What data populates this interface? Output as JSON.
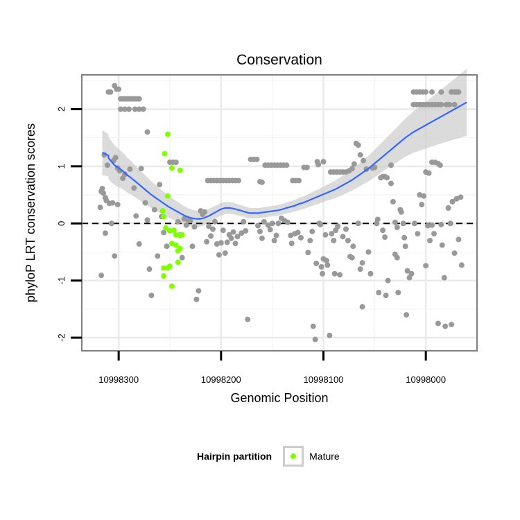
{
  "chart_data": {
    "type": "scatter",
    "title": "Conservation",
    "xlabel": "Genomic Position",
    "ylabel": "phyloP LRT conservation scores",
    "x_reversed": true,
    "xlim": [
      10998336,
      10997950
    ],
    "ylim": [
      -2.23,
      2.6
    ],
    "xticks": [
      10998300,
      10998200,
      10998100,
      10998000
    ],
    "xtick_labels": [
      "10998300",
      "10998200",
      "10998100",
      "10998000"
    ],
    "yticks": [
      2,
      1,
      0,
      -1,
      -2
    ],
    "ytick_labels": [
      "2",
      "1",
      "0",
      "-1",
      "-2"
    ],
    "grid": true,
    "hline": 0,
    "colors": {
      "background_point": "#999999",
      "mature": "#7fff00",
      "smooth": "#3366ff",
      "ribbon": "#cccccc"
    },
    "legend": {
      "title": "Hairpin partition",
      "entries": [
        "Mature"
      ],
      "position": "bottom"
    },
    "series": [
      {
        "x": [
          10998316,
          10998310,
          10998310,
          10998308,
          10998306,
          10998304,
          10998300,
          10998297,
          10998294,
          10998292,
          10998288,
          10998284,
          10998280,
          10998276,
          10998272,
          10998268,
          10998264,
          10998260,
          10998256,
          10998252,
          10998248,
          10998244,
          10998240,
          10998236,
          10998232,
          10998228,
          10998224,
          10998220,
          10998216,
          10998212,
          10998208,
          10998204,
          10998200,
          10998196,
          10998192,
          10998188,
          10998184,
          10998180,
          10998176,
          10998172,
          10998168,
          10998164,
          10998160,
          10998156,
          10998152,
          10998148,
          10998144,
          10998140,
          10998136,
          10998132,
          10998128,
          10998124,
          10998120,
          10998116,
          10998112,
          10998108,
          10998104,
          10998100,
          10998096,
          10998092,
          10998088,
          10998084,
          10998080,
          10998076,
          10998072,
          10998068,
          10998064,
          10998060,
          10998056,
          10998052,
          10998048,
          10998044,
          10998040,
          10998036,
          10998032,
          10998028,
          10998024,
          10998020,
          10998016,
          10998012,
          10998008,
          10998004,
          10998000,
          10997996,
          10997992,
          10997988,
          10997984,
          10997980,
          10997976,
          10997972,
          10997968,
          10997964,
          10997960
        ],
        "y": [
          1.24,
          1.19,
          1.15,
          1.1,
          1.06,
          1.02,
          0.97,
          0.93,
          0.89,
          0.85,
          0.8,
          0.74,
          0.68,
          0.62,
          0.56,
          0.5,
          0.45,
          0.4,
          0.35,
          0.3,
          0.26,
          0.22,
          0.18,
          0.14,
          0.11,
          0.09,
          0.08,
          0.08,
          0.1,
          0.13,
          0.17,
          0.21,
          0.25,
          0.27,
          0.27,
          0.26,
          0.24,
          0.22,
          0.2,
          0.18,
          0.18,
          0.18,
          0.19,
          0.2,
          0.21,
          0.22,
          0.23,
          0.25,
          0.27,
          0.29,
          0.31,
          0.34,
          0.36,
          0.39,
          0.42,
          0.45,
          0.48,
          0.51,
          0.54,
          0.57,
          0.6,
          0.64,
          0.68,
          0.72,
          0.76,
          0.81,
          0.86,
          0.91,
          0.96,
          1.02,
          1.08,
          1.14,
          1.2,
          1.26,
          1.32,
          1.38,
          1.44,
          1.5,
          1.55,
          1.6,
          1.64,
          1.68,
          1.72,
          1.76,
          1.8,
          1.84,
          1.88,
          1.92,
          1.96,
          2.0,
          2.04,
          2.08,
          2.12
        ],
        "name": ""
      }
    ]
  },
  "points_gray": [
    [
      10998317,
      -0.91
    ],
    [
      10998318,
      0.28
    ],
    [
      10998317,
      0.56
    ],
    [
      10998316,
      0.61
    ],
    [
      10998315,
      0.53
    ],
    [
      10998314,
      1.2
    ],
    [
      10998313,
      0.45
    ],
    [
      10998312,
      0.4
    ],
    [
      10998313,
      -0.17
    ],
    [
      10998310,
      2.3
    ],
    [
      10998308,
      2.3
    ],
    [
      10998311,
      1.02
    ],
    [
      10998309,
      0.35
    ],
    [
      10998307,
      0.0
    ],
    [
      10998306,
      0.36
    ],
    [
      10998305,
      1.1
    ],
    [
      10998304,
      2.41
    ],
    [
      10998302,
      2.35
    ],
    [
      10998300,
      2.35
    ],
    [
      10998303,
      1.15
    ],
    [
      10998304,
      -0.57
    ],
    [
      10998301,
      0.97
    ],
    [
      10998299,
      0.92
    ],
    [
      10998301,
      0.33
    ],
    [
      10998298,
      2.18
    ],
    [
      10998296,
      2.18
    ],
    [
      10998294,
      2.18
    ],
    [
      10998292,
      2.18
    ],
    [
      10998290,
      2.18
    ],
    [
      10998288,
      2.18
    ],
    [
      10998286,
      2.18
    ],
    [
      10998284,
      2.18
    ],
    [
      10998282,
      2.18
    ],
    [
      10998280,
      2.18
    ],
    [
      10998298,
      2.0
    ],
    [
      10998294,
      2.0
    ],
    [
      10998290,
      2.0
    ],
    [
      10998284,
      2.0
    ],
    [
      10998280,
      2.0
    ],
    [
      10998276,
      2.0
    ],
    [
      10998296,
      0.79
    ],
    [
      10998294,
      0.86
    ],
    [
      10998289,
      0.95
    ],
    [
      10998285,
      0.62
    ],
    [
      10998283,
      0.13
    ],
    [
      10998280,
      -0.36
    ],
    [
      10998278,
      0.96
    ],
    [
      10998274,
      0.36
    ],
    [
      10998272,
      1.6
    ],
    [
      10998270,
      -0.8
    ],
    [
      10998268,
      -1.26
    ],
    [
      10998272,
      0.06
    ],
    [
      10998265,
      0.24
    ],
    [
      10998262,
      -0.57
    ],
    [
      10998260,
      0.68
    ],
    [
      10998258,
      0.12
    ],
    [
      10998256,
      -0.16
    ],
    [
      10998253,
      -0.4
    ],
    [
      10998250,
      1.07
    ],
    [
      10998247,
      1.07
    ],
    [
      10998244,
      1.07
    ],
    [
      10998242,
      0.03
    ],
    [
      10998240,
      -0.2
    ],
    [
      10998238,
      -0.6
    ],
    [
      10998236,
      0.08
    ],
    [
      10998234,
      -0.03
    ],
    [
      10998232,
      0.05
    ],
    [
      10998230,
      0.05
    ],
    [
      10998228,
      -0.4
    ],
    [
      10998226,
      -0.06
    ],
    [
      10998224,
      -1.33
    ],
    [
      10998222,
      -1.18
    ],
    [
      10998220,
      0.22
    ],
    [
      10998218,
      0.16
    ],
    [
      10998216,
      0.2
    ],
    [
      10998213,
      0.75
    ],
    [
      10998210,
      0.75
    ],
    [
      10998207,
      0.75
    ],
    [
      10998204,
      0.75
    ],
    [
      10998201,
      0.75
    ],
    [
      10998198,
      0.75
    ],
    [
      10998195,
      0.75
    ],
    [
      10998192,
      0.75
    ],
    [
      10998189,
      0.75
    ],
    [
      10998186,
      0.75
    ],
    [
      10998183,
      0.75
    ],
    [
      10998214,
      -0.32
    ],
    [
      10998212,
      -0.05
    ],
    [
      10998210,
      -0.22
    ],
    [
      10998208,
      -0.1
    ],
    [
      10998206,
      0.03
    ],
    [
      10998204,
      -0.36
    ],
    [
      10998202,
      -0.55
    ],
    [
      10998200,
      -0.34
    ],
    [
      10998198,
      -0.12
    ],
    [
      10998196,
      -0.52
    ],
    [
      10998194,
      -0.33
    ],
    [
      10998192,
      -0.2
    ],
    [
      10998190,
      -0.26
    ],
    [
      10998188,
      -0.15
    ],
    [
      10998186,
      -0.35
    ],
    [
      10998184,
      -0.23
    ],
    [
      10998180,
      -0.17
    ],
    [
      10998178,
      0.03
    ],
    [
      10998176,
      -0.13
    ],
    [
      10998174,
      -1.68
    ],
    [
      10998171,
      1.12
    ],
    [
      10998168,
      1.12
    ],
    [
      10998165,
      1.12
    ],
    [
      10998162,
      0.73
    ],
    [
      10998160,
      0.72
    ],
    [
      10998164,
      -0.04
    ],
    [
      10998162,
      -0.14
    ],
    [
      10998160,
      -0.26
    ],
    [
      10998158,
      0.03
    ],
    [
      10998154,
      -0.03
    ],
    [
      10998157,
      1.02
    ],
    [
      10998154,
      1.02
    ],
    [
      10998151,
      1.02
    ],
    [
      10998148,
      1.02
    ],
    [
      10998145,
      1.02
    ],
    [
      10998142,
      1.02
    ],
    [
      10998139,
      1.02
    ],
    [
      10998136,
      1.02
    ],
    [
      10998152,
      -0.11
    ],
    [
      10998150,
      0.0
    ],
    [
      10998148,
      -0.3
    ],
    [
      10998146,
      -0.21
    ],
    [
      10998144,
      0.0
    ],
    [
      10998141,
      0.09
    ],
    [
      10998138,
      0.05
    ],
    [
      10998135,
      0.02
    ],
    [
      10998130,
      0.75
    ],
    [
      10998127,
      0.75
    ],
    [
      10998124,
      0.75
    ],
    [
      10998132,
      -0.21
    ],
    [
      10998131,
      -0.35
    ],
    [
      10998128,
      -0.18
    ],
    [
      10998125,
      -0.16
    ],
    [
      10998122,
      -0.25
    ],
    [
      10998119,
      0.98
    ],
    [
      10998116,
      0.98
    ],
    [
      10998115,
      -0.51
    ],
    [
      10998113,
      -0.3
    ],
    [
      10998111,
      -0.14
    ],
    [
      10998110,
      -1.8
    ],
    [
      10998108,
      -2.03
    ],
    [
      10998107,
      -0.7
    ],
    [
      10998106,
      1.08
    ],
    [
      10998105,
      1.03
    ],
    [
      10998104,
      0.0
    ],
    [
      10998103,
      -0.02
    ],
    [
      10998102,
      -0.76
    ],
    [
      10998101,
      -0.88
    ],
    [
      10998100,
      -0.62
    ],
    [
      10998100,
      1.08
    ],
    [
      10998098,
      -0.2
    ],
    [
      10998097,
      -0.65
    ],
    [
      10998096,
      -0.73
    ],
    [
      10998094,
      -1.96
    ],
    [
      10998093,
      0.9
    ],
    [
      10998090,
      0.9
    ],
    [
      10998087,
      0.9
    ],
    [
      10998084,
      0.9
    ],
    [
      10998081,
      0.9
    ],
    [
      10998078,
      0.9
    ],
    [
      10998075,
      0.92
    ],
    [
      10998072,
      0.96
    ],
    [
      10998070,
      1.04
    ],
    [
      10998092,
      -0.18
    ],
    [
      10998090,
      -0.3
    ],
    [
      10998089,
      -0.88
    ],
    [
      10998088,
      -0.12
    ],
    [
      10998086,
      -0.05
    ],
    [
      10998084,
      -0.9
    ],
    [
      10998081,
      -0.23
    ],
    [
      10998078,
      -0.1
    ],
    [
      10998076,
      -0.3
    ],
    [
      10998074,
      -0.58
    ],
    [
      10998072,
      -0.6
    ],
    [
      10998071,
      -0.4
    ],
    [
      10998068,
      1.4
    ],
    [
      10998066,
      1.37
    ],
    [
      10998064,
      1.2
    ],
    [
      10998066,
      0.0
    ],
    [
      10998064,
      -0.8
    ],
    [
      10998062,
      -0.69
    ],
    [
      10998062,
      -1.46
    ],
    [
      10998061,
      1.1
    ],
    [
      10998058,
      0.95
    ],
    [
      10998056,
      -0.5
    ],
    [
      10998054,
      -0.88
    ],
    [
      10998052,
      0.97
    ],
    [
      10998050,
      0.98
    ],
    [
      10998048,
      0.0
    ],
    [
      10998047,
      0.07
    ],
    [
      10998046,
      -1.21
    ],
    [
      10998044,
      0.8
    ],
    [
      10998042,
      0.82
    ],
    [
      10998040,
      0.82
    ],
    [
      10998038,
      0.8
    ],
    [
      10998042,
      -0.12
    ],
    [
      10998040,
      -0.24
    ],
    [
      10998039,
      -1.26
    ],
    [
      10998037,
      -1.0
    ],
    [
      10998034,
      0.7
    ],
    [
      10998034,
      1.02
    ],
    [
      10998032,
      0.38
    ],
    [
      10998030,
      0.02
    ],
    [
      10998028,
      -0.07
    ],
    [
      10998030,
      -0.54
    ],
    [
      10998028,
      -0.6
    ],
    [
      10998027,
      -1.21
    ],
    [
      10998025,
      0.24
    ],
    [
      10998024,
      0.2
    ],
    [
      10998022,
      0.0
    ],
    [
      10998021,
      -0.25
    ],
    [
      10998020,
      -0.4
    ],
    [
      10998019,
      -1.6
    ],
    [
      10998018,
      -0.83
    ],
    [
      10998016,
      -0.95
    ],
    [
      10998014,
      -0.88
    ],
    [
      10998011,
      0.0
    ],
    [
      10998008,
      -0.18
    ],
    [
      10998006,
      0.5
    ],
    [
      10998004,
      0.33
    ],
    [
      10998002,
      0.48
    ],
    [
      10998000,
      -0.74
    ],
    [
      10998012,
      2.3
    ],
    [
      10998009,
      2.3
    ],
    [
      10998006,
      2.3
    ],
    [
      10998003,
      2.3
    ],
    [
      10998000,
      2.3
    ],
    [
      10998012,
      2.08
    ],
    [
      10998009,
      2.08
    ],
    [
      10998006,
      2.08
    ],
    [
      10998003,
      2.08
    ],
    [
      10998000,
      2.08
    ],
    [
      10997997,
      2.08
    ],
    [
      10997994,
      2.3
    ],
    [
      10997994,
      2.08
    ],
    [
      10997991,
      2.08
    ],
    [
      10997988,
      2.08
    ],
    [
      10997985,
      2.3
    ],
    [
      10997985,
      2.08
    ],
    [
      10997980,
      2.08
    ],
    [
      10997975,
      2.3
    ],
    [
      10997972,
      2.3
    ],
    [
      10997970,
      2.3
    ],
    [
      10997977,
      2.08
    ],
    [
      10997972,
      2.08
    ],
    [
      10998000,
      0.9
    ],
    [
      10997997,
      0.88
    ],
    [
      10997994,
      1.07
    ],
    [
      10997991,
      1.07
    ],
    [
      10997988,
      1.05
    ],
    [
      10997986,
      1.02
    ],
    [
      10997998,
      -0.04
    ],
    [
      10997996,
      -0.3
    ],
    [
      10997994,
      -0.03
    ],
    [
      10997992,
      -0.18
    ],
    [
      10997988,
      -1.75
    ],
    [
      10997985,
      -0.02
    ],
    [
      10997984,
      -0.38
    ],
    [
      10997982,
      -0.95
    ],
    [
      10997981,
      -1.8
    ],
    [
      10997978,
      0.27
    ],
    [
      10997976,
      0.0
    ],
    [
      10997975,
      -1.77
    ],
    [
      10997974,
      0.38
    ],
    [
      10997972,
      -0.52
    ],
    [
      10997970,
      0.43
    ],
    [
      10997968,
      -0.28
    ],
    [
      10997966,
      0.46
    ],
    [
      10997965,
      -0.73
    ],
    [
      10997968,
      2.3
    ]
  ],
  "points_mature": [
    [
      10998252,
      1.56
    ],
    [
      10998255,
      1.22
    ],
    [
      10998248,
      0.97
    ],
    [
      10998240,
      0.93
    ],
    [
      10998252,
      0.48
    ],
    [
      10998257,
      0.22
    ],
    [
      10998256,
      0.12
    ],
    [
      10998254,
      -0.08
    ],
    [
      10998250,
      -0.13
    ],
    [
      10998246,
      -0.12
    ],
    [
      10998244,
      -0.2
    ],
    [
      10998238,
      -0.2
    ],
    [
      10998240,
      -0.21
    ],
    [
      10998248,
      -0.35
    ],
    [
      10998244,
      -0.38
    ],
    [
      10998240,
      -0.44
    ],
    [
      10998242,
      -0.48
    ],
    [
      10998256,
      -0.78
    ],
    [
      10998252,
      -0.78
    ],
    [
      10998250,
      -0.75
    ],
    [
      10998242,
      -0.68
    ],
    [
      10998256,
      -0.92
    ],
    [
      10998248,
      -1.1
    ]
  ]
}
